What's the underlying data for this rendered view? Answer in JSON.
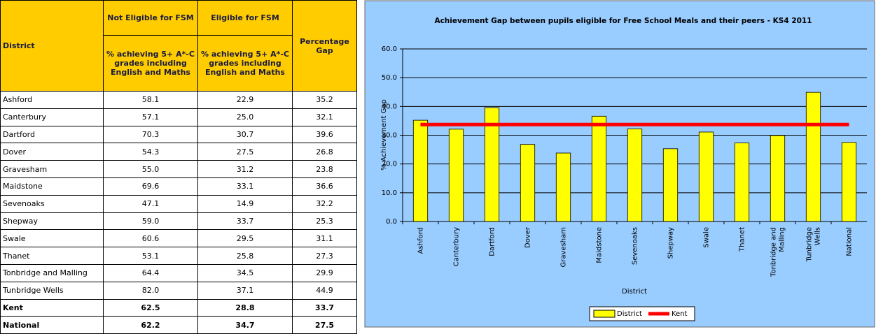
{
  "table": {
    "headers": {
      "district": "District",
      "not_eligible": "Not Eligible for FSM",
      "eligible": "Eligible for FSM",
      "measure_1": "% achieving 5+ A*-C grades including English and Maths",
      "measure_2": "% achieving 5+ A*-C grades including English and Maths",
      "gap": "Percentage Gap"
    },
    "rows": [
      [
        "Ashford",
        "58.1",
        "22.9",
        "35.2"
      ],
      [
        "Canterbury",
        "57.1",
        "25.0",
        "32.1"
      ],
      [
        "Dartford",
        "70.3",
        "30.7",
        "39.6"
      ],
      [
        "Dover",
        "54.3",
        "27.5",
        "26.8"
      ],
      [
        "Gravesham",
        "55.0",
        "31.2",
        "23.8"
      ],
      [
        "Maidstone",
        "69.6",
        "33.1",
        "36.6"
      ],
      [
        "Sevenoaks",
        "47.1",
        "14.9",
        "32.2"
      ],
      [
        "Shepway",
        "59.0",
        "33.7",
        "25.3"
      ],
      [
        "Swale",
        "60.6",
        "29.5",
        "31.1"
      ],
      [
        "Thanet",
        "53.1",
        "25.8",
        "27.3"
      ],
      [
        "Tonbridge and Malling",
        "64.4",
        "34.5",
        "29.9"
      ],
      [
        "Tunbridge Wells",
        "82.0",
        "37.1",
        "44.9"
      ],
      [
        "Kent",
        "62.5",
        "28.8",
        "33.7"
      ],
      [
        "National",
        "62.2",
        "34.7",
        "27.5"
      ]
    ],
    "bold_rows": [
      12,
      13
    ]
  },
  "chart_data": {
    "type": "bar",
    "title": "Achievement Gap between pupils eligible for Free School Meals and their peers - KS4 2011",
    "x_label": "District",
    "y_label": "% Achievement Gap",
    "categories": [
      "Ashford",
      "Canterbury",
      "Dartford",
      "Dover",
      "Gravesham",
      "Maidstone",
      "Sevenoaks",
      "Shepway",
      "Swale",
      "Thanet",
      "Tonbridge and Malling",
      "Tunbridge Wells",
      "National"
    ],
    "series": [
      {
        "name": "District",
        "color": "#ffff00",
        "type": "bar",
        "values": [
          35.2,
          32.1,
          39.6,
          26.8,
          23.8,
          36.6,
          32.2,
          25.3,
          31.1,
          27.3,
          29.9,
          44.9,
          27.5
        ]
      },
      {
        "name": "Kent",
        "color": "#ff0000",
        "type": "line",
        "values": [
          33.7,
          33.7,
          33.7,
          33.7,
          33.7,
          33.7,
          33.7,
          33.7,
          33.7,
          33.7,
          33.7,
          33.7,
          33.7
        ]
      }
    ],
    "ylim": [
      0,
      60
    ],
    "yticks": [
      {
        "value": 0,
        "label": "0.0"
      },
      {
        "value": 10,
        "label": "10.0"
      },
      {
        "value": 20,
        "label": "20.0"
      },
      {
        "value": 30,
        "label": "30.0"
      },
      {
        "value": 40,
        "label": "40.0"
      },
      {
        "value": 50,
        "label": "50.0"
      },
      {
        "value": 60,
        "label": "60.0"
      }
    ],
    "grid": true,
    "legend": "bottom"
  }
}
